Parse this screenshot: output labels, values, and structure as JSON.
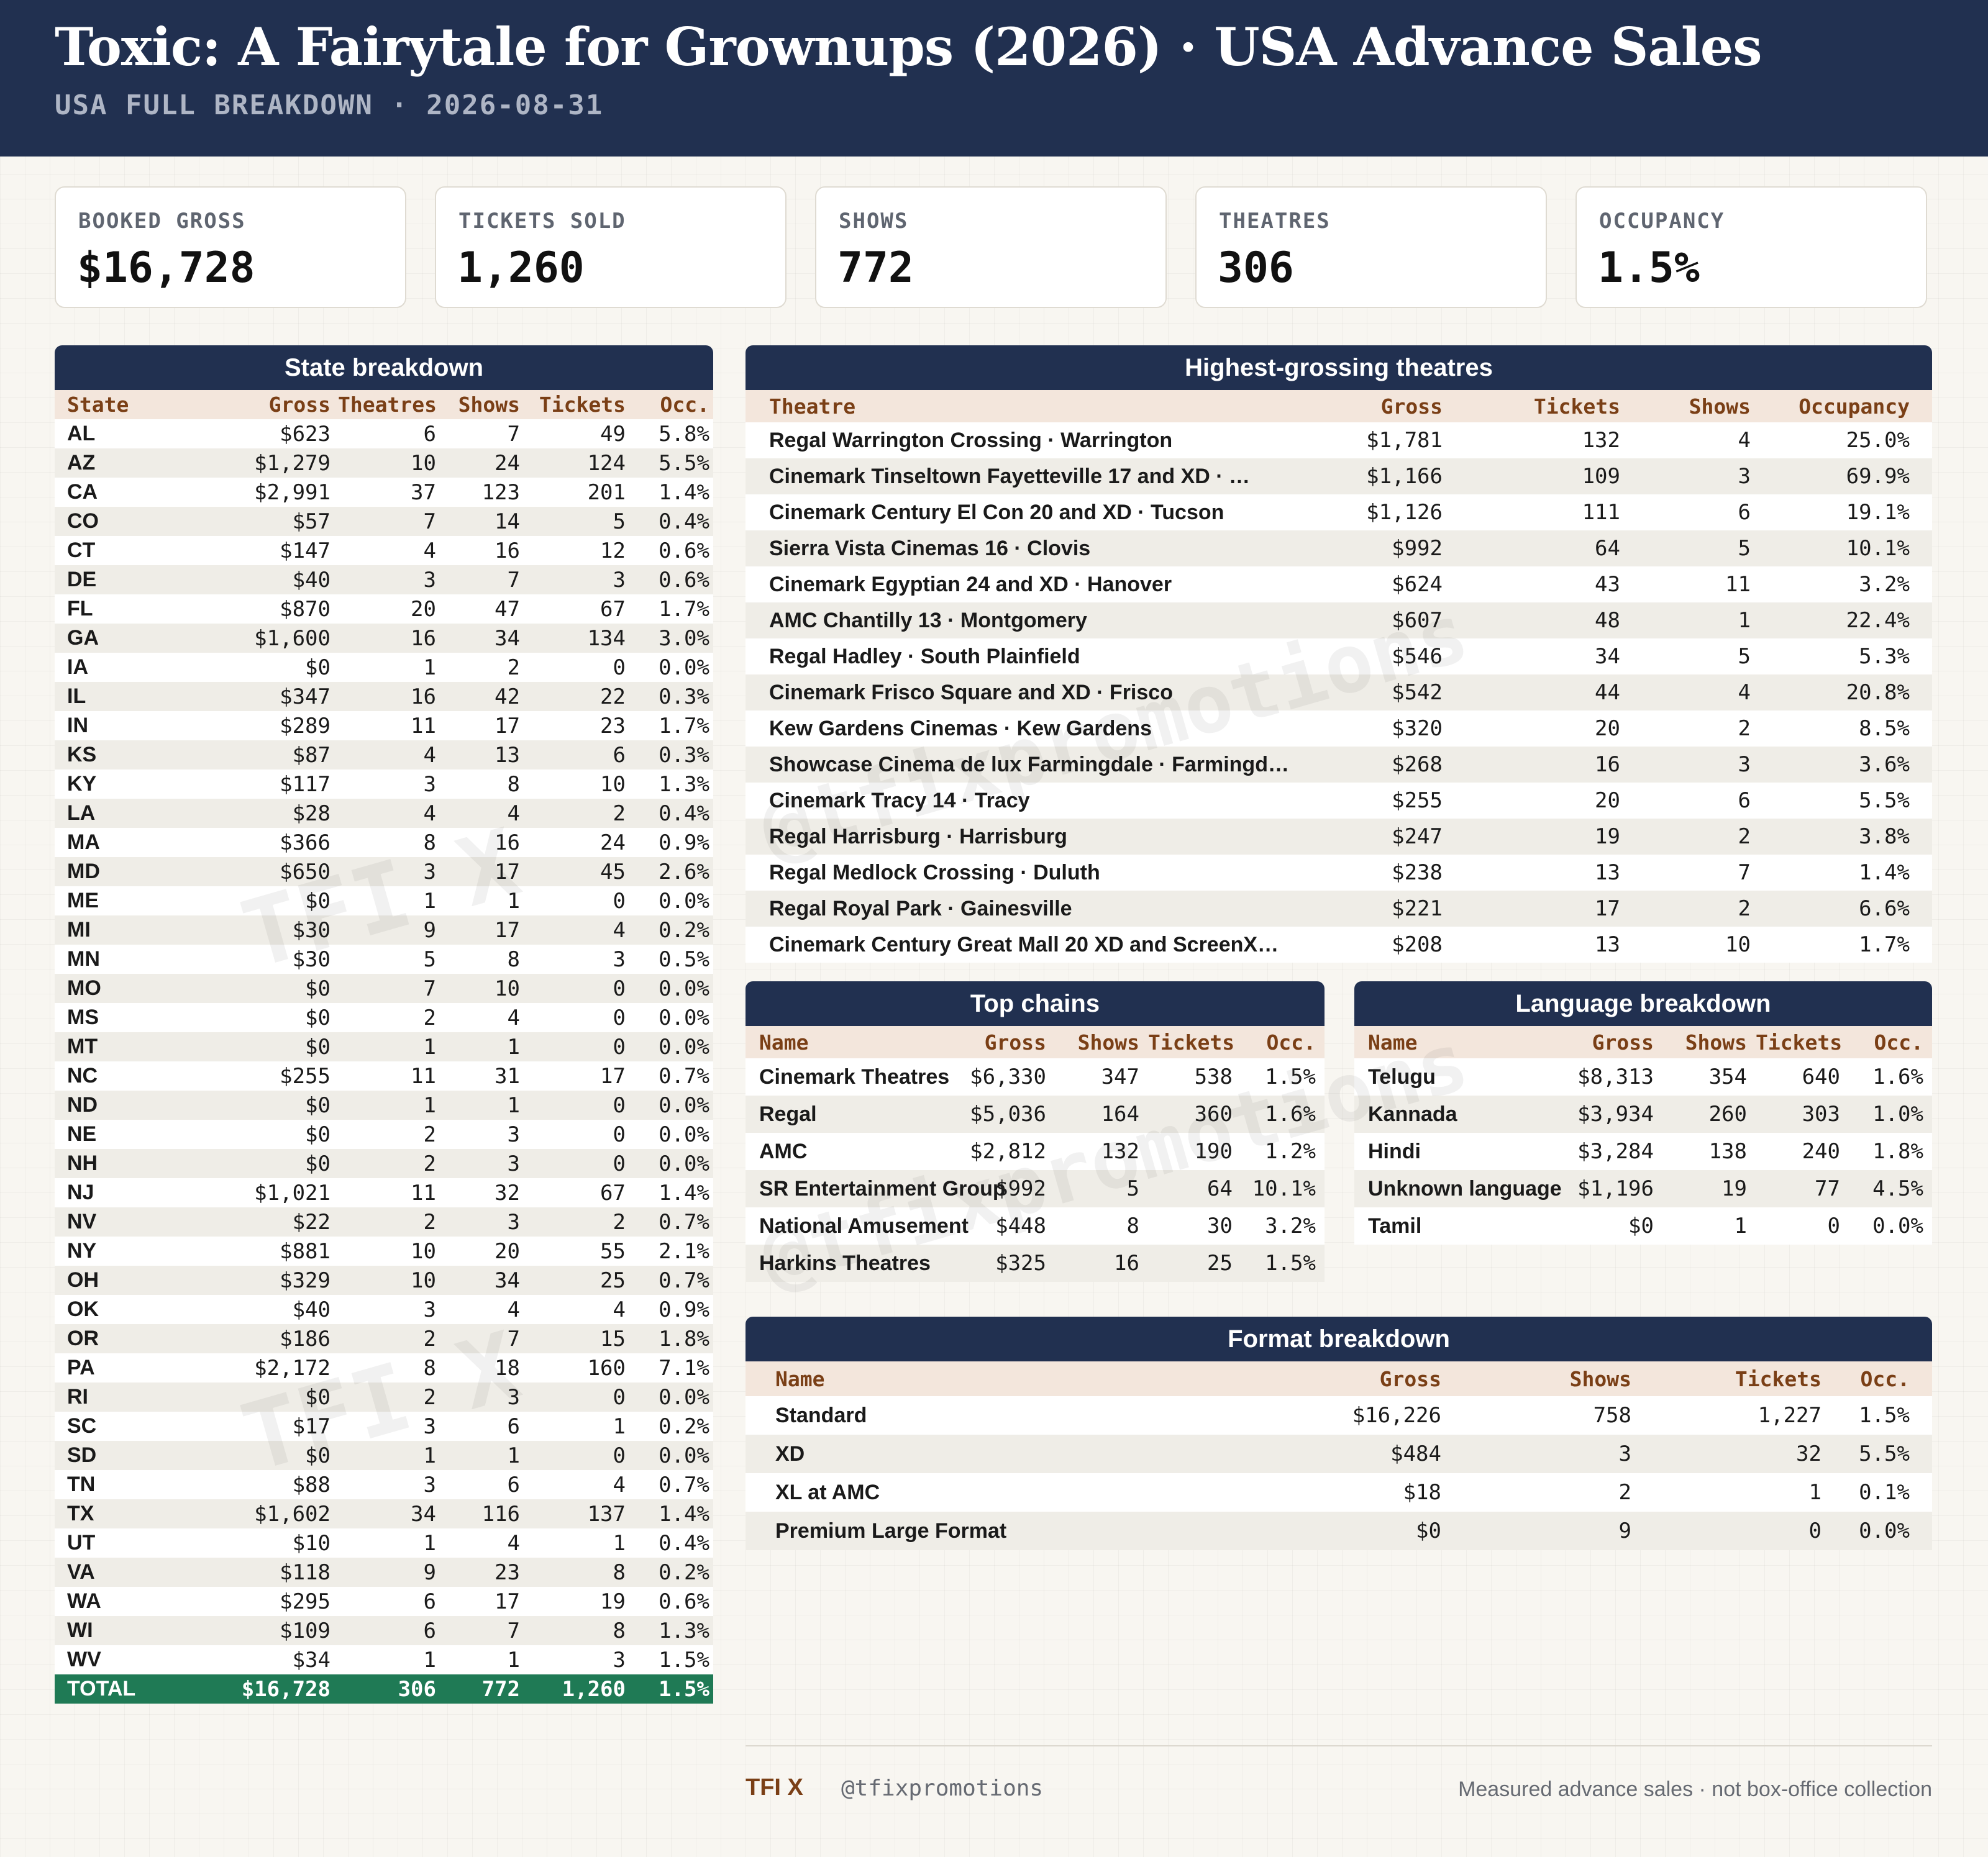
{
  "header": {
    "title": "Toxic: A Fairytale for Grownups (2026) · USA Advance Sales",
    "subtitle": "USA FULL BREAKDOWN · 2026-08-31"
  },
  "kpis": [
    {
      "label": "BOOKED GROSS",
      "value": "$16,728"
    },
    {
      "label": "TICKETS SOLD",
      "value": "1,260"
    },
    {
      "label": "SHOWS",
      "value": "772"
    },
    {
      "label": "THEATRES",
      "value": "306"
    },
    {
      "label": "OCCUPANCY",
      "value": "1.5%"
    }
  ],
  "states": {
    "title": "State breakdown",
    "columns": [
      "State",
      "Gross",
      "Theatres",
      "Shows",
      "Tickets",
      "Occ."
    ],
    "rows": [
      [
        "AL",
        "$623",
        "6",
        "7",
        "49",
        "5.8%"
      ],
      [
        "AZ",
        "$1,279",
        "10",
        "24",
        "124",
        "5.5%"
      ],
      [
        "CA",
        "$2,991",
        "37",
        "123",
        "201",
        "1.4%"
      ],
      [
        "CO",
        "$57",
        "7",
        "14",
        "5",
        "0.4%"
      ],
      [
        "CT",
        "$147",
        "4",
        "16",
        "12",
        "0.6%"
      ],
      [
        "DE",
        "$40",
        "3",
        "7",
        "3",
        "0.6%"
      ],
      [
        "FL",
        "$870",
        "20",
        "47",
        "67",
        "1.7%"
      ],
      [
        "GA",
        "$1,600",
        "16",
        "34",
        "134",
        "3.0%"
      ],
      [
        "IA",
        "$0",
        "1",
        "2",
        "0",
        "0.0%"
      ],
      [
        "IL",
        "$347",
        "16",
        "42",
        "22",
        "0.3%"
      ],
      [
        "IN",
        "$289",
        "11",
        "17",
        "23",
        "1.7%"
      ],
      [
        "KS",
        "$87",
        "4",
        "13",
        "6",
        "0.3%"
      ],
      [
        "KY",
        "$117",
        "3",
        "8",
        "10",
        "1.3%"
      ],
      [
        "LA",
        "$28",
        "4",
        "4",
        "2",
        "0.4%"
      ],
      [
        "MA",
        "$366",
        "8",
        "16",
        "24",
        "0.9%"
      ],
      [
        "MD",
        "$650",
        "3",
        "17",
        "45",
        "2.6%"
      ],
      [
        "ME",
        "$0",
        "1",
        "1",
        "0",
        "0.0%"
      ],
      [
        "MI",
        "$30",
        "9",
        "17",
        "4",
        "0.2%"
      ],
      [
        "MN",
        "$30",
        "5",
        "8",
        "3",
        "0.5%"
      ],
      [
        "MO",
        "$0",
        "7",
        "10",
        "0",
        "0.0%"
      ],
      [
        "MS",
        "$0",
        "2",
        "4",
        "0",
        "0.0%"
      ],
      [
        "MT",
        "$0",
        "1",
        "1",
        "0",
        "0.0%"
      ],
      [
        "NC",
        "$255",
        "11",
        "31",
        "17",
        "0.7%"
      ],
      [
        "ND",
        "$0",
        "1",
        "1",
        "0",
        "0.0%"
      ],
      [
        "NE",
        "$0",
        "2",
        "3",
        "0",
        "0.0%"
      ],
      [
        "NH",
        "$0",
        "2",
        "3",
        "0",
        "0.0%"
      ],
      [
        "NJ",
        "$1,021",
        "11",
        "32",
        "67",
        "1.4%"
      ],
      [
        "NV",
        "$22",
        "2",
        "3",
        "2",
        "0.7%"
      ],
      [
        "NY",
        "$881",
        "10",
        "20",
        "55",
        "2.1%"
      ],
      [
        "OH",
        "$329",
        "10",
        "34",
        "25",
        "0.7%"
      ],
      [
        "OK",
        "$40",
        "3",
        "4",
        "4",
        "0.9%"
      ],
      [
        "OR",
        "$186",
        "2",
        "7",
        "15",
        "1.8%"
      ],
      [
        "PA",
        "$2,172",
        "8",
        "18",
        "160",
        "7.1%"
      ],
      [
        "RI",
        "$0",
        "2",
        "3",
        "0",
        "0.0%"
      ],
      [
        "SC",
        "$17",
        "3",
        "6",
        "1",
        "0.2%"
      ],
      [
        "SD",
        "$0",
        "1",
        "1",
        "0",
        "0.0%"
      ],
      [
        "TN",
        "$88",
        "3",
        "6",
        "4",
        "0.7%"
      ],
      [
        "TX",
        "$1,602",
        "34",
        "116",
        "137",
        "1.4%"
      ],
      [
        "UT",
        "$10",
        "1",
        "4",
        "1",
        "0.4%"
      ],
      [
        "VA",
        "$118",
        "9",
        "23",
        "8",
        "0.2%"
      ],
      [
        "WA",
        "$295",
        "6",
        "17",
        "19",
        "0.6%"
      ],
      [
        "WI",
        "$109",
        "6",
        "7",
        "8",
        "1.3%"
      ],
      [
        "WV",
        "$34",
        "1",
        "1",
        "3",
        "1.5%"
      ]
    ],
    "total": [
      "TOTAL",
      "$16,728",
      "306",
      "772",
      "1,260",
      "1.5%"
    ]
  },
  "theatres": {
    "title": "Highest-grossing theatres",
    "columns": [
      "Theatre",
      "Gross",
      "Tickets",
      "Shows",
      "Occupancy"
    ],
    "rows": [
      [
        "Regal Warrington Crossing · Warrington",
        "$1,781",
        "132",
        "4",
        "25.0%"
      ],
      [
        "Cinemark Tinseltown Fayetteville 17 and XD · …",
        "$1,166",
        "109",
        "3",
        "69.9%"
      ],
      [
        "Cinemark Century El Con 20 and XD · Tucson",
        "$1,126",
        "111",
        "6",
        "19.1%"
      ],
      [
        "Sierra Vista Cinemas 16 · Clovis",
        "$992",
        "64",
        "5",
        "10.1%"
      ],
      [
        "Cinemark Egyptian 24 and XD · Hanover",
        "$624",
        "43",
        "11",
        "3.2%"
      ],
      [
        "AMC Chantilly 13 · Montgomery",
        "$607",
        "48",
        "1",
        "22.4%"
      ],
      [
        "Regal Hadley · South Plainfield",
        "$546",
        "34",
        "5",
        "5.3%"
      ],
      [
        "Cinemark Frisco Square and XD · Frisco",
        "$542",
        "44",
        "4",
        "20.8%"
      ],
      [
        "Kew Gardens Cinemas · Kew Gardens",
        "$320",
        "20",
        "2",
        "8.5%"
      ],
      [
        "Showcase Cinema de lux Farmingdale · Farmingd…",
        "$268",
        "16",
        "3",
        "3.6%"
      ],
      [
        "Cinemark Tracy 14 · Tracy",
        "$255",
        "20",
        "6",
        "5.5%"
      ],
      [
        "Regal Harrisburg · Harrisburg",
        "$247",
        "19",
        "2",
        "3.8%"
      ],
      [
        "Regal Medlock Crossing · Duluth",
        "$238",
        "13",
        "7",
        "1.4%"
      ],
      [
        "Regal Royal Park · Gainesville",
        "$221",
        "17",
        "2",
        "6.6%"
      ],
      [
        "Cinemark Century Great Mall 20 XD and ScreenX…",
        "$208",
        "13",
        "10",
        "1.7%"
      ]
    ]
  },
  "chains": {
    "title": "Top chains",
    "columns": [
      "Name",
      "Gross",
      "Shows",
      "Tickets",
      "Occ."
    ],
    "rows": [
      [
        "Cinemark Theatres",
        "$6,330",
        "347",
        "538",
        "1.5%"
      ],
      [
        "Regal",
        "$5,036",
        "164",
        "360",
        "1.6%"
      ],
      [
        "AMC",
        "$2,812",
        "132",
        "190",
        "1.2%"
      ],
      [
        "SR Entertainment Group",
        "$992",
        "5",
        "64",
        "10.1%"
      ],
      [
        "National Amusement",
        "$448",
        "8",
        "30",
        "3.2%"
      ],
      [
        "Harkins Theatres",
        "$325",
        "16",
        "25",
        "1.5%"
      ]
    ]
  },
  "languages": {
    "title": "Language breakdown",
    "columns": [
      "Name",
      "Gross",
      "Shows",
      "Tickets",
      "Occ."
    ],
    "rows": [
      [
        "Telugu",
        "$8,313",
        "354",
        "640",
        "1.6%"
      ],
      [
        "Kannada",
        "$3,934",
        "260",
        "303",
        "1.0%"
      ],
      [
        "Hindi",
        "$3,284",
        "138",
        "240",
        "1.8%"
      ],
      [
        "Unknown language",
        "$1,196",
        "19",
        "77",
        "4.5%"
      ],
      [
        "Tamil",
        "$0",
        "1",
        "0",
        "0.0%"
      ]
    ]
  },
  "formats": {
    "title": "Format breakdown",
    "columns": [
      "Name",
      "Gross",
      "Shows",
      "Tickets",
      "Occ."
    ],
    "rows": [
      [
        "Standard",
        "$16,226",
        "758",
        "1,227",
        "1.5%"
      ],
      [
        "XD",
        "$484",
        "3",
        "32",
        "5.5%"
      ],
      [
        "XL at AMC",
        "$18",
        "2",
        "1",
        "0.1%"
      ],
      [
        "Premium Large Format",
        "$0",
        "9",
        "0",
        "0.0%"
      ]
    ]
  },
  "watermarks": {
    "brand": "TFI X",
    "handle": "@tfixpromotions"
  },
  "footer": {
    "brand": "TFI X",
    "handle": "@tfixpromotions",
    "note": "Measured advance sales · not box-office collection"
  }
}
